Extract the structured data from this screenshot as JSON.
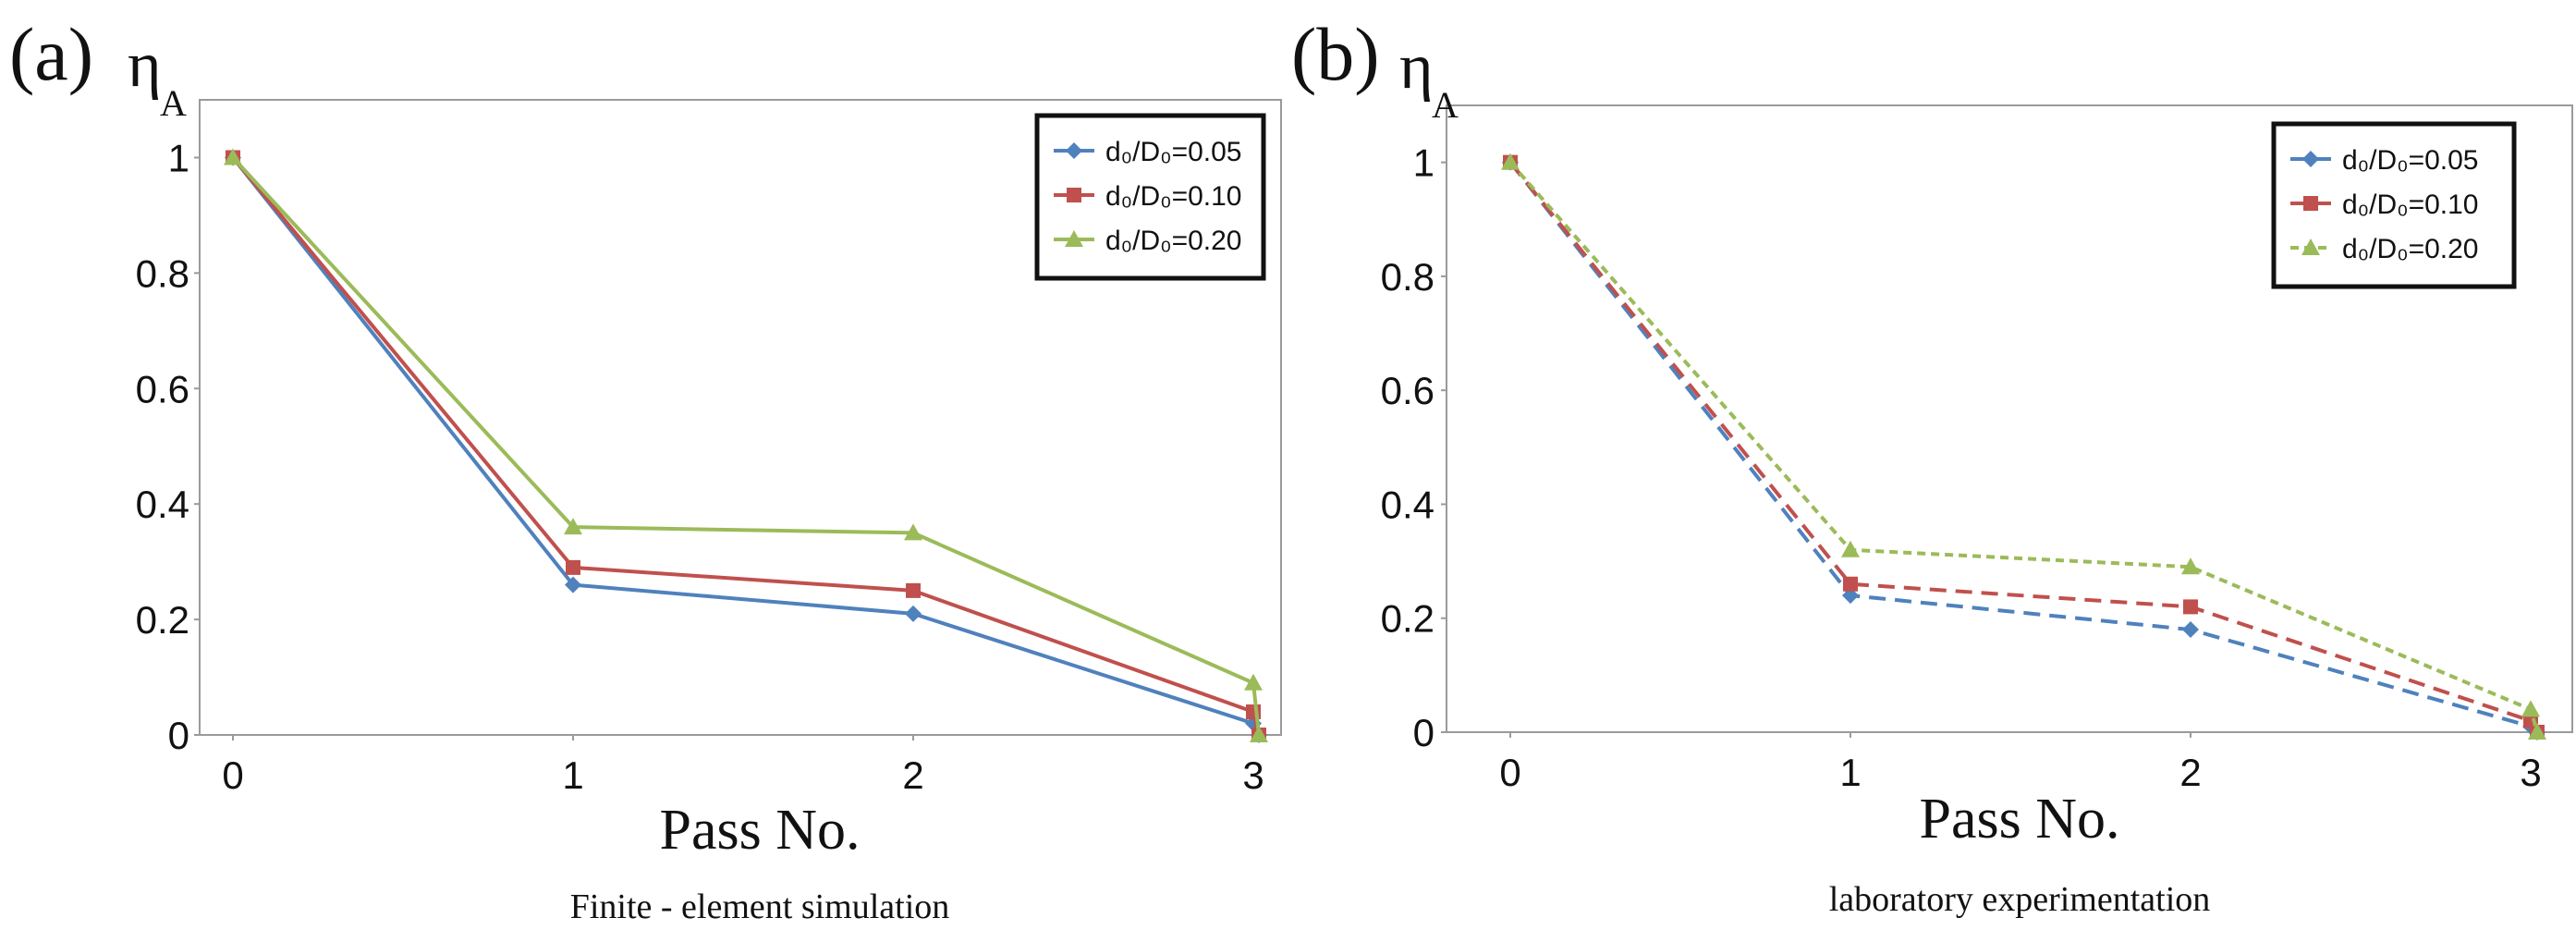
{
  "chart_data": [
    {
      "type": "line",
      "panel_label": "(a)",
      "ylabel_main": "η",
      "ylabel_sub": "A",
      "xlabel": "Pass No.",
      "caption": "Finite - element simulation",
      "x": [
        0,
        1,
        2,
        3
      ],
      "x_ticks": [
        "0",
        "1",
        "2",
        "3"
      ],
      "y_ticks": [
        "0",
        "0.2",
        "0.4",
        "0.6",
        "0.8",
        "1"
      ],
      "ylim": [
        0,
        1.1
      ],
      "line_style": "solid",
      "series": [
        {
          "name": "d₀/D₀=0.05",
          "color": "#4f81bd",
          "marker": "diamond",
          "values": [
            1.0,
            0.26,
            0.21,
            0.02
          ]
        },
        {
          "name": "d₀/D₀=0.10",
          "color": "#c0504d",
          "marker": "square",
          "values": [
            1.0,
            0.29,
            0.25,
            0.04
          ]
        },
        {
          "name": "d₀/D₀=0.20",
          "color": "#9bbb59",
          "marker": "triangle",
          "values": [
            1.0,
            0.36,
            0.35,
            0.09
          ]
        }
      ],
      "end_value": 0
    },
    {
      "type": "line",
      "panel_label": "(b)",
      "ylabel_main": "η",
      "ylabel_sub": "A",
      "xlabel": "Pass No.",
      "caption": "laboratory experimentation",
      "x": [
        0,
        1,
        2,
        3
      ],
      "x_ticks": [
        "0",
        "1",
        "2",
        "3"
      ],
      "y_ticks": [
        "0",
        "0.2",
        "0.4",
        "0.6",
        "0.8",
        "1"
      ],
      "ylim": [
        0,
        1.1
      ],
      "line_style": "dashed",
      "series": [
        {
          "name": "d₀/D₀=0.05",
          "color": "#4f81bd",
          "marker": "diamond",
          "values": [
            1.0,
            0.24,
            0.18,
            0.01
          ]
        },
        {
          "name": "d₀/D₀=0.10",
          "color": "#c0504d",
          "marker": "square",
          "values": [
            1.0,
            0.26,
            0.22,
            0.02
          ]
        },
        {
          "name": "d₀/D₀=0.20",
          "color": "#9bbb59",
          "marker": "triangle",
          "values": [
            1.0,
            0.32,
            0.29,
            0.04
          ]
        }
      ],
      "end_value": 0
    }
  ]
}
